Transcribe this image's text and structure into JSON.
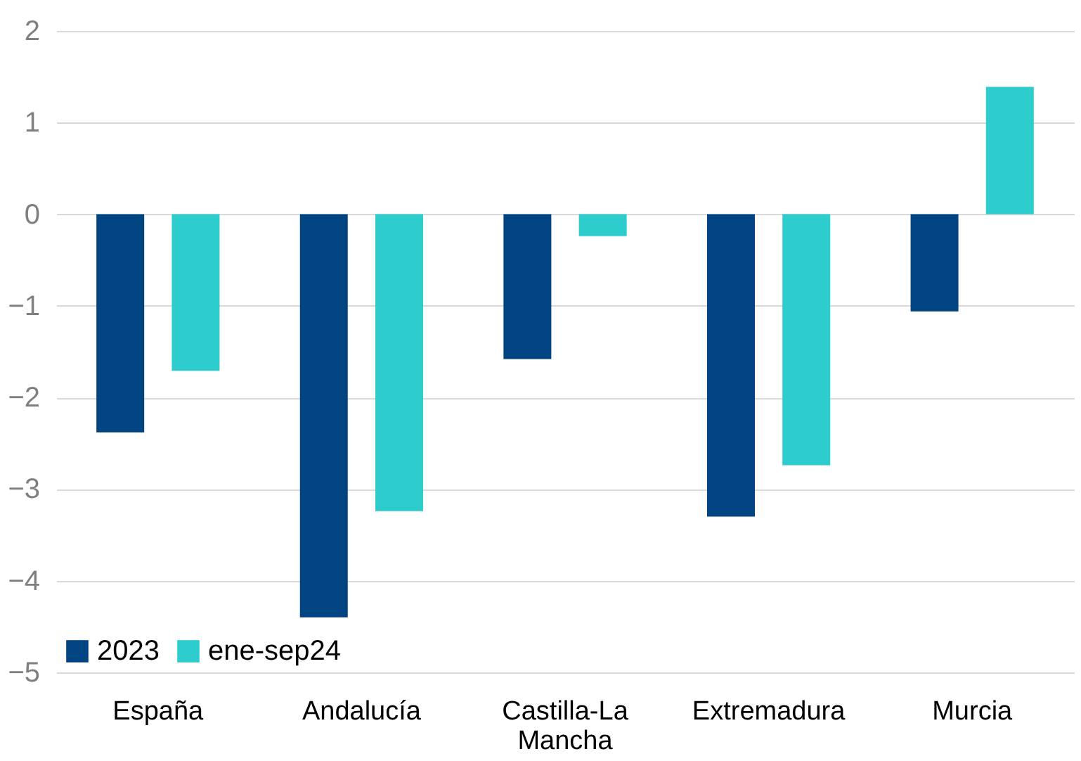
{
  "chart_data": {
    "type": "bar",
    "categories": [
      "España",
      "Andalucía",
      "Castilla-La Mancha",
      "Extremadura",
      "Murcia"
    ],
    "series": [
      {
        "name": "2023",
        "color": "#004481",
        "values": [
          -2.38,
          -4.4,
          -1.58,
          -3.3,
          -1.06
        ]
      },
      {
        "name": "ene-sep24",
        "color": "#2dcccd",
        "values": [
          -1.71,
          -3.24,
          -0.24,
          -2.74,
          1.39
        ]
      }
    ],
    "ylim": [
      -5,
      2
    ],
    "yticks": [
      -5,
      -4,
      -3,
      -2,
      -1,
      0,
      1,
      2
    ],
    "grid": "y",
    "legend": "bottom left"
  }
}
